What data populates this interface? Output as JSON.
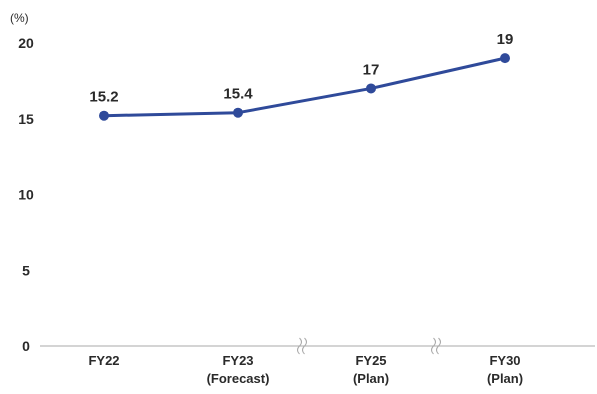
{
  "chart_data": {
    "type": "line",
    "unit_label": "(%)",
    "title": "",
    "xlabel": "",
    "ylabel": "",
    "ylim": [
      0,
      20
    ],
    "yticks": [
      "0",
      "5",
      "10",
      "15",
      "20"
    ],
    "categories": [
      {
        "line1": "FY22",
        "line2": ""
      },
      {
        "line1": "FY23",
        "line2": "(Forecast)"
      },
      {
        "line1": "FY25",
        "line2": "(Plan)"
      },
      {
        "line1": "FY30",
        "line2": "(Plan)"
      }
    ],
    "series": [
      {
        "values": [
          15.2,
          15.4,
          17,
          19
        ],
        "labels": [
          "15.2",
          "15.4",
          "17",
          "19"
        ],
        "color": "#2f4a9a"
      }
    ],
    "axis_breaks": "between FY23 and FY25, and between FY25 and FY30",
    "grid": false,
    "axis_color": "#aaaaaa"
  }
}
